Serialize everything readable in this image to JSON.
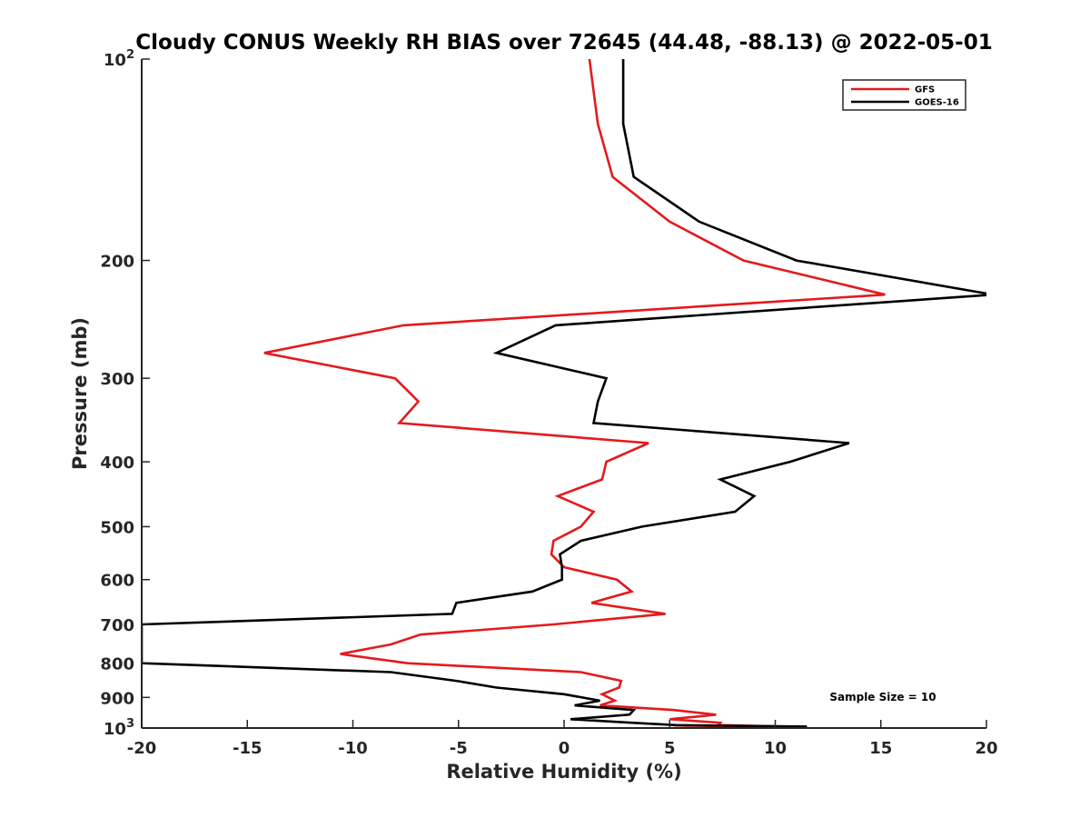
{
  "chart_data": {
    "type": "line",
    "title": "Cloudy CONUS Weekly RH BIAS over 72645 (44.48, -88.13) @ 2022-05-01",
    "xlabel": "Relative Humidity (%)",
    "ylabel": "Pressure (mb)",
    "xlim": [
      -20,
      20
    ],
    "ylim": [
      100,
      1000
    ],
    "y_scale": "log",
    "y_reversed": true,
    "grid": false,
    "legend_position": "top-right",
    "x_ticks": [
      "-20",
      "-15",
      "-10",
      "-5",
      "0",
      "5",
      "10",
      "15",
      "20"
    ],
    "y_ticks": [
      {
        "base": "10",
        "exp": "2"
      },
      {
        "base": "200",
        "exp": ""
      },
      {
        "base": "300",
        "exp": ""
      },
      {
        "base": "400",
        "exp": ""
      },
      {
        "base": "500",
        "exp": ""
      },
      {
        "base": "600",
        "exp": ""
      },
      {
        "base": "700",
        "exp": ""
      },
      {
        "base": "800",
        "exp": ""
      },
      {
        "base": "900",
        "exp": ""
      },
      {
        "base": "10",
        "exp": "3"
      }
    ],
    "annotation": "Sample Size = 10",
    "series": [
      {
        "name": "GFS",
        "color": "#e41a1c",
        "points": [
          [
            1.2,
            100
          ],
          [
            1.6,
            125
          ],
          [
            2.3,
            150
          ],
          [
            5.0,
            175
          ],
          [
            8.5,
            200
          ],
          [
            15.2,
            225
          ],
          [
            -7.6,
            250
          ],
          [
            -14.2,
            275
          ],
          [
            -8.0,
            300
          ],
          [
            -6.9,
            325
          ],
          [
            -7.8,
            350
          ],
          [
            4.0,
            375
          ],
          [
            2.0,
            400
          ],
          [
            1.8,
            425
          ],
          [
            -0.3,
            450
          ],
          [
            1.4,
            475
          ],
          [
            0.8,
            500
          ],
          [
            -0.5,
            525
          ],
          [
            -0.6,
            550
          ],
          [
            0.0,
            575
          ],
          [
            2.5,
            600
          ],
          [
            3.2,
            625
          ],
          [
            1.3,
            650
          ],
          [
            4.8,
            675
          ],
          [
            -0.5,
            700
          ],
          [
            -6.8,
            725
          ],
          [
            -8.2,
            750
          ],
          [
            -10.6,
            775
          ],
          [
            -7.4,
            800
          ],
          [
            0.8,
            825
          ],
          [
            2.7,
            850
          ],
          [
            2.6,
            870
          ],
          [
            1.8,
            890
          ],
          [
            2.4,
            910
          ],
          [
            1.7,
            925
          ],
          [
            5.2,
            940
          ],
          [
            7.2,
            955
          ],
          [
            5.0,
            970
          ],
          [
            7.4,
            982
          ],
          [
            7.3,
            990
          ],
          [
            10.5,
            995
          ],
          [
            5.2,
            1000
          ]
        ]
      },
      {
        "name": "GOES-16",
        "color": "#000000",
        "points": [
          [
            2.8,
            100
          ],
          [
            2.8,
            125
          ],
          [
            3.3,
            150
          ],
          [
            6.4,
            175
          ],
          [
            11.0,
            200
          ],
          [
            20.3,
            225
          ],
          [
            -0.4,
            250
          ],
          [
            -3.2,
            275
          ],
          [
            2.0,
            300
          ],
          [
            1.6,
            325
          ],
          [
            1.4,
            350
          ],
          [
            13.5,
            375
          ],
          [
            10.7,
            400
          ],
          [
            7.4,
            425
          ],
          [
            9.0,
            450
          ],
          [
            8.1,
            475
          ],
          [
            3.7,
            500
          ],
          [
            0.8,
            525
          ],
          [
            -0.2,
            550
          ],
          [
            -0.1,
            575
          ],
          [
            -0.1,
            600
          ],
          [
            -1.5,
            625
          ],
          [
            -5.1,
            650
          ],
          [
            -5.3,
            675
          ],
          [
            -20.0,
            700
          ],
          [
            -20.0,
            750
          ],
          [
            -20.0,
            800
          ],
          [
            -8.2,
            825
          ],
          [
            -5.1,
            850
          ],
          [
            -3.2,
            870
          ],
          [
            0.0,
            890
          ],
          [
            1.7,
            910
          ],
          [
            0.5,
            925
          ],
          [
            3.3,
            940
          ],
          [
            3.1,
            955
          ],
          [
            0.3,
            970
          ],
          [
            3.2,
            982
          ],
          [
            5.3,
            990
          ],
          [
            11.5,
            995
          ],
          [
            8.1,
            1000
          ]
        ]
      }
    ]
  }
}
